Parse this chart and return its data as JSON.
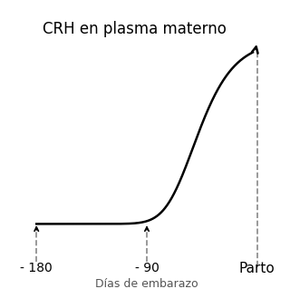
{
  "title": "CRH en plasma materno",
  "xlabel": "Días de embarazo",
  "x_labels": [
    "- 180",
    "- 90",
    "Parto"
  ],
  "background_color": "#ffffff",
  "line_color": "#000000",
  "dashed_color": "#888888",
  "title_fontsize": 12,
  "xlabel_fontsize": 9,
  "tick_fontsize": 10
}
